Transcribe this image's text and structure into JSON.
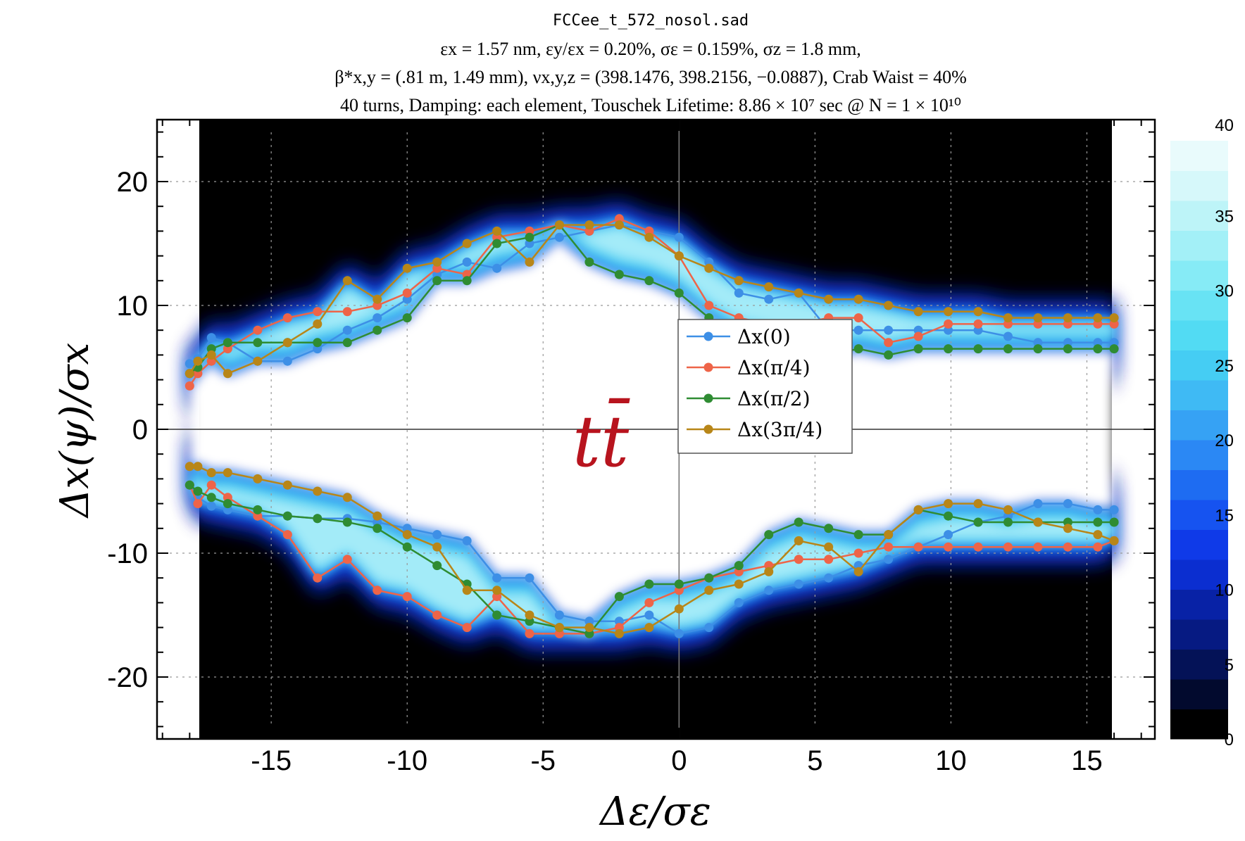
{
  "chart_data": {
    "type": "line",
    "title_lines": [
      "FCCee_t_572_nosol.sad",
      "εx = 1.57 nm, εy/εx = 0.20%, σε = 0.159%, σz = 1.8 mm,",
      "β*x,y = (.81 m, 1.49 mm), νx,y,z = (398.1476, 398.2156, −0.0887), Crab Waist = 40%",
      "40 turns, Damping: each element, Touschek Lifetime: 8.86 × 10⁷ sec @ N = 1 × 10¹⁰"
    ],
    "xlabel": "Δε/σε",
    "ylabel": "Δx(ψ)/σx",
    "xlim": [
      -19.2,
      17.5
    ],
    "ylim": [
      -25,
      25
    ],
    "xticks": [
      -15,
      -10,
      -5,
      0,
      5,
      10,
      15
    ],
    "yticks": [
      -20,
      -10,
      0,
      10,
      20
    ],
    "annotation": "tt̄",
    "colorbar": {
      "ticks": [
        0,
        5,
        10,
        15,
        20,
        25,
        30,
        35,
        40
      ],
      "range": [
        0,
        40
      ]
    },
    "legend_position": "center-right",
    "series": [
      {
        "name": "Δx(0)",
        "color": "#3d8fe6",
        "upper_x": [
          -18,
          -17.7,
          -17.2,
          -16.6,
          -15.5,
          -14.4,
          -13.3,
          -12.2,
          -11.1,
          -10,
          -8.9,
          -7.8,
          -6.7,
          -5.5,
          -4.4,
          -3.3,
          -2.2,
          -1.1,
          0,
          1.1,
          2.2,
          3.3,
          4.4,
          5.5,
          6.6,
          7.7,
          8.8,
          9.9,
          11,
          12.1,
          13.2,
          14.3,
          15.4,
          16
        ],
        "upper_y": [
          5.3,
          5.7,
          7.4,
          7.0,
          5.5,
          5.5,
          6.5,
          8.0,
          9.0,
          10.5,
          12.5,
          13.5,
          13.0,
          15.0,
          15.5,
          16.0,
          16.5,
          16.0,
          15.5,
          13.5,
          11.0,
          10.5,
          11.0,
          8.0,
          8.0,
          8.0,
          8.0,
          8.0,
          8.0,
          7.5,
          7.0,
          7.0,
          7.0,
          7.0
        ],
        "lower_x": [
          -18,
          -17.7,
          -17.2,
          -16.6,
          -15.5,
          -14.4,
          -13.3,
          -12.2,
          -11.1,
          -10,
          -8.9,
          -7.8,
          -6.7,
          -5.5,
          -4.4,
          -3.3,
          -2.2,
          -1.1,
          0,
          1.1,
          2.2,
          3.3,
          4.4,
          5.5,
          6.6,
          7.7,
          8.8,
          9.9,
          11,
          12.1,
          13.2,
          14.3,
          15.4,
          16
        ],
        "lower_y": [
          -4.5,
          -5.5,
          -6.2,
          -6.5,
          -7.0,
          -7.0,
          -7.2,
          -7.2,
          -7.5,
          -8.0,
          -8.5,
          -9.0,
          -12.0,
          -12.0,
          -15.0,
          -15.5,
          -15.5,
          -15.0,
          -16.5,
          -16.0,
          -14.0,
          -13.0,
          -12.5,
          -12.0,
          -11.0,
          -10.5,
          -9.5,
          -8.5,
          -7.5,
          -7.0,
          -6.0,
          -6.0,
          -6.5,
          -6.5
        ]
      },
      {
        "name": "Δx(π/4)",
        "color": "#ee6448",
        "upper_x": [
          -18,
          -17.7,
          -17.2,
          -16.6,
          -15.5,
          -14.4,
          -13.3,
          -12.2,
          -11.1,
          -10,
          -8.9,
          -7.8,
          -6.7,
          -5.5,
          -4.4,
          -3.3,
          -2.2,
          -1.1,
          0,
          1.1,
          2.2,
          3.3,
          4.4,
          5.5,
          6.6,
          7.7,
          8.8,
          9.9,
          11,
          12.1,
          13.2,
          14.3,
          15.4,
          16
        ],
        "upper_y": [
          3.5,
          4.5,
          5.5,
          6.5,
          8.0,
          9.0,
          9.5,
          9.5,
          10.0,
          11.0,
          13.0,
          12.5,
          15.5,
          16.0,
          16.5,
          16.0,
          17.0,
          16.0,
          14.0,
          10.0,
          9.0,
          8.5,
          8.5,
          9.0,
          9.0,
          7.0,
          7.5,
          8.5,
          8.5,
          8.5,
          8.5,
          8.5,
          8.5,
          8.5
        ],
        "lower_x": [
          -18,
          -17.7,
          -17.2,
          -16.6,
          -15.5,
          -14.4,
          -13.3,
          -12.2,
          -11.1,
          -10,
          -8.9,
          -7.8,
          -6.7,
          -5.5,
          -4.4,
          -3.3,
          -2.2,
          -1.1,
          0,
          1.1,
          2.2,
          3.3,
          4.4,
          5.5,
          6.6,
          7.7,
          8.8,
          9.9,
          11,
          12.1,
          13.2,
          14.3,
          15.4,
          16
        ],
        "lower_y": [
          -4.5,
          -6.0,
          -4.5,
          -5.5,
          -7.0,
          -8.5,
          -12.0,
          -10.5,
          -13.0,
          -13.5,
          -15.0,
          -16.0,
          -13.5,
          -16.5,
          -16.5,
          -16.5,
          -16.0,
          -14.0,
          -13.0,
          -12.0,
          -11.5,
          -11.0,
          -10.5,
          -10.5,
          -10.0,
          -9.5,
          -9.5,
          -9.5,
          -9.5,
          -9.5,
          -9.5,
          -9.5,
          -9.5,
          -9.0
        ]
      },
      {
        "name": "Δx(π/2)",
        "color": "#2f8c33",
        "upper_x": [
          -18,
          -17.7,
          -17.2,
          -16.6,
          -15.5,
          -14.4,
          -13.3,
          -12.2,
          -11.1,
          -10,
          -8.9,
          -7.8,
          -6.7,
          -5.5,
          -4.4,
          -3.3,
          -2.2,
          -1.1,
          0,
          1.1,
          2.2,
          3.3,
          4.4,
          5.5,
          6.6,
          7.7,
          8.8,
          9.9,
          11,
          12.1,
          13.2,
          14.3,
          15.4,
          16
        ],
        "upper_y": [
          4.5,
          5.0,
          6.5,
          7.0,
          7.0,
          7.0,
          7.0,
          7.0,
          8.0,
          9.0,
          12.0,
          12.0,
          15.0,
          15.5,
          16.5,
          13.5,
          12.5,
          12.0,
          11.0,
          9.0,
          7.5,
          7.0,
          6.0,
          6.0,
          6.5,
          6.0,
          6.5,
          6.5,
          6.5,
          6.5,
          6.5,
          6.5,
          6.5,
          6.5
        ],
        "lower_x": [
          -18,
          -17.7,
          -17.2,
          -16.6,
          -15.5,
          -14.4,
          -13.3,
          -12.2,
          -11.1,
          -10,
          -8.9,
          -7.8,
          -6.7,
          -5.5,
          -4.4,
          -3.3,
          -2.2,
          -1.1,
          0,
          1.1,
          2.2,
          3.3,
          4.4,
          5.5,
          6.6,
          7.7,
          8.8,
          9.9,
          11,
          12.1,
          13.2,
          14.3,
          15.4,
          16
        ],
        "lower_y": [
          -4.5,
          -5.0,
          -5.5,
          -6.0,
          -6.5,
          -7.0,
          -7.2,
          -7.5,
          -8.0,
          -9.5,
          -11.0,
          -12.5,
          -15.0,
          -15.5,
          -16.0,
          -16.5,
          -13.5,
          -12.5,
          -12.5,
          -12.0,
          -11.0,
          -8.5,
          -7.5,
          -8.0,
          -8.5,
          -8.5,
          -6.5,
          -7.0,
          -7.5,
          -7.5,
          -7.5,
          -7.5,
          -7.5,
          -7.5
        ]
      },
      {
        "name": "Δx(3π/4)",
        "color": "#b88618",
        "upper_x": [
          -18,
          -17.7,
          -17.2,
          -16.6,
          -15.5,
          -14.4,
          -13.3,
          -12.2,
          -11.1,
          -10,
          -8.9,
          -7.8,
          -6.7,
          -5.5,
          -4.4,
          -3.3,
          -2.2,
          -1.1,
          0,
          1.1,
          2.2,
          3.3,
          4.4,
          5.5,
          6.6,
          7.7,
          8.8,
          9.9,
          11,
          12.1,
          13.2,
          14.3,
          15.4,
          16
        ],
        "upper_y": [
          4.5,
          5.5,
          6.0,
          4.5,
          5.5,
          7.0,
          8.5,
          12.0,
          10.5,
          13.0,
          13.5,
          15.0,
          16.0,
          13.5,
          16.5,
          16.5,
          16.5,
          15.5,
          14.0,
          13.0,
          12.0,
          11.5,
          11.0,
          10.5,
          10.5,
          10.0,
          9.5,
          9.5,
          9.5,
          9.0,
          9.0,
          9.0,
          9.0,
          9.0
        ],
        "lower_x": [
          -18,
          -17.7,
          -17.2,
          -16.6,
          -15.5,
          -14.4,
          -13.3,
          -12.2,
          -11.1,
          -10,
          -8.9,
          -7.8,
          -6.7,
          -5.5,
          -4.4,
          -3.3,
          -2.2,
          -1.1,
          0,
          1.1,
          2.2,
          3.3,
          4.4,
          5.5,
          6.6,
          7.7,
          8.8,
          9.9,
          11,
          12.1,
          13.2,
          14.3,
          15.4,
          16
        ],
        "lower_y": [
          -3.0,
          -3.0,
          -3.5,
          -3.5,
          -4.0,
          -4.5,
          -5.0,
          -5.5,
          -7.0,
          -8.5,
          -9.5,
          -13.0,
          -13.0,
          -15.0,
          -16.0,
          -16.0,
          -16.5,
          -16.0,
          -14.5,
          -13.0,
          -12.5,
          -11.5,
          -9.0,
          -9.5,
          -11.5,
          -8.5,
          -6.5,
          -6.0,
          -6.0,
          -6.5,
          -7.5,
          -8.0,
          -8.5,
          -9.0
        ]
      }
    ]
  }
}
